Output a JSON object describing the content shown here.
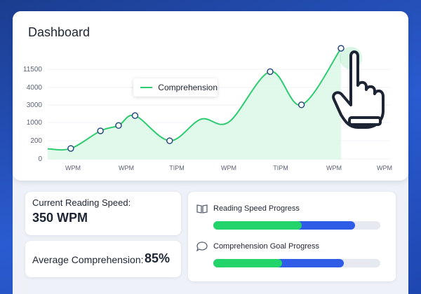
{
  "header": {
    "title": "Dashboard"
  },
  "chart_data": {
    "type": "area",
    "series_name": "Comprehension",
    "y_ticks": [
      "11500",
      "4000",
      "3000",
      "1000",
      "200",
      "0"
    ],
    "x_ticks": [
      "WPM",
      "WPM",
      "TIPM",
      "WPM",
      "TIPM",
      "WPM",
      "WPM"
    ],
    "points": [
      {
        "x": 0.0,
        "y": 0.6
      },
      {
        "x": 0.7,
        "y": 0.62
      },
      {
        "x": 1.6,
        "y": 1.6
      },
      {
        "x": 2.15,
        "y": 1.9
      },
      {
        "x": 2.65,
        "y": 2.45
      },
      {
        "x": 3.7,
        "y": 1.05
      },
      {
        "x": 4.65,
        "y": 2.25
      },
      {
        "x": 5.5,
        "y": 2.1
      },
      {
        "x": 6.75,
        "y": 4.9
      },
      {
        "x": 7.7,
        "y": 3.05
      },
      {
        "x": 8.9,
        "y": 6.2
      }
    ],
    "marked_points": [
      1,
      2,
      3,
      4,
      5,
      8,
      9,
      10
    ],
    "colors": {
      "line": "#2ecc71",
      "area": "#d9f7e6"
    }
  },
  "stats": {
    "speed_label": "Current Reading Speed:",
    "speed_value": "350 WPM",
    "comp_label": "Average Comprehension:",
    "comp_value": "85%"
  },
  "progress": [
    {
      "label": "Reading Speed Progress",
      "icon": "book-icon",
      "blue": 0.85,
      "green": 0.53
    },
    {
      "label": "Comprehension Goal Progress",
      "icon": "speech-bubble-icon",
      "blue": 0.78,
      "green": 0.41
    }
  ]
}
